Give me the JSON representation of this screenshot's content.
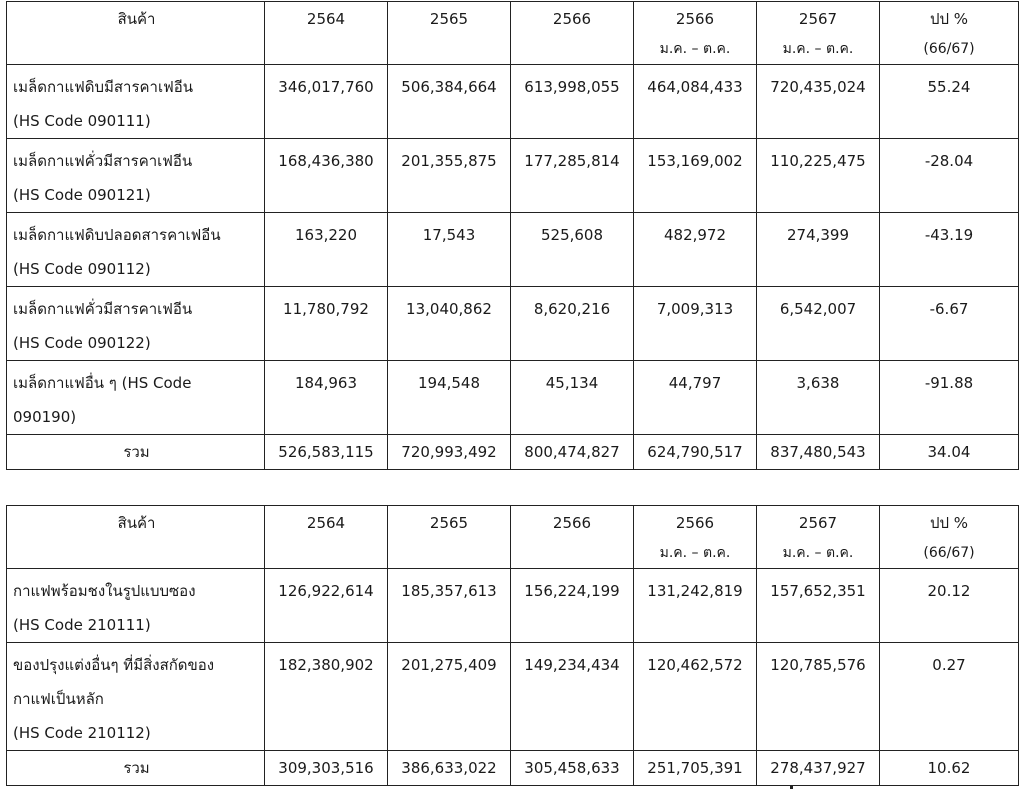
{
  "header": {
    "product": "สินค้า",
    "y2564": "2564",
    "y2565": "2565",
    "y2566": "2566",
    "y2566_period": "2566",
    "y2566_period_sub": "ม.ค. – ต.ค.",
    "y2567_period": "2567",
    "y2567_period_sub": "ม.ค. – ต.ค.",
    "change": "ปป %",
    "change_sub": "(66/67)"
  },
  "table1": {
    "rows": [
      {
        "name_lines": [
          "เมล็ดกาแฟดิบมีสารคาเฟอีน",
          " (HS Code 090111)"
        ],
        "v2564": "346,017,760",
        "v2565": "506,384,664",
        "v2566": "613,998,055",
        "v2566p": "464,084,433",
        "v2567p": "720,435,024",
        "change": "55.24"
      },
      {
        "name_lines": [
          "เมล็ดกาแฟคั่วมีสารคาเฟอีน",
          "(HS Code 090121)"
        ],
        "v2564": "168,436,380",
        "v2565": "201,355,875",
        "v2566": "177,285,814",
        "v2566p": "153,169,002",
        "v2567p": "110,225,475",
        "change": "-28.04"
      },
      {
        "name_lines": [
          "เมล็ดกาแฟดิบปลอดสารคาเฟอีน",
          "(HS Code 090112)"
        ],
        "v2564": "163,220",
        "v2565": "17,543",
        "v2566": "525,608",
        "v2566p": "482,972",
        "v2567p": "274,399",
        "change": "-43.19"
      },
      {
        "name_lines": [
          "เมล็ดกาแฟคั่วมีสารคาเฟอีน",
          "(HS Code 090122)"
        ],
        "v2564": "11,780,792",
        "v2565": "13,040,862",
        "v2566": "8,620,216",
        "v2566p": "7,009,313",
        "v2567p": "6,542,007",
        "change": "-6.67"
      },
      {
        "name_lines": [
          "เมล็ดกาแฟอื่น ๆ (HS Code",
          "090190)"
        ],
        "v2564": "184,963",
        "v2565": "194,548",
        "v2566": "45,134",
        "v2566p": "44,797",
        "v2567p": "3,638",
        "change": "-91.88"
      }
    ],
    "total": {
      "label": "รวม",
      "v2564": "526,583,115",
      "v2565": "720,993,492",
      "v2566": "800,474,827",
      "v2566p": "624,790,517",
      "v2567p": "837,480,543",
      "change": "34.04"
    }
  },
  "table2": {
    "rows": [
      {
        "name_lines": [
          "กาแฟพร้อมชงในรูปแบบซอง",
          "(HS Code 210111)"
        ],
        "v2564": "126,922,614",
        "v2565": "185,357,613",
        "v2566": "156,224,199",
        "v2566p": "131,242,819",
        "v2567p": "157,652,351",
        "change": "20.12"
      },
      {
        "name_lines": [
          "ของปรุงแต่งอื่นๆ ที่มีสิ่งสกัดของ",
          "กาแฟเป็นหลัก",
          "(HS Code 210112)"
        ],
        "v2564": "182,380,902",
        "v2565": "201,275,409",
        "v2566": "149,234,434",
        "v2566p": "120,462,572",
        "v2567p": "120,785,576",
        "change": "0.27"
      }
    ],
    "total": {
      "label": "รวม",
      "v2564": "309,303,516",
      "v2565": "386,633,022",
      "v2566": "305,458,633",
      "v2566p": "251,705,391",
      "v2567p": "278,437,927",
      "change": "10.62"
    }
  }
}
